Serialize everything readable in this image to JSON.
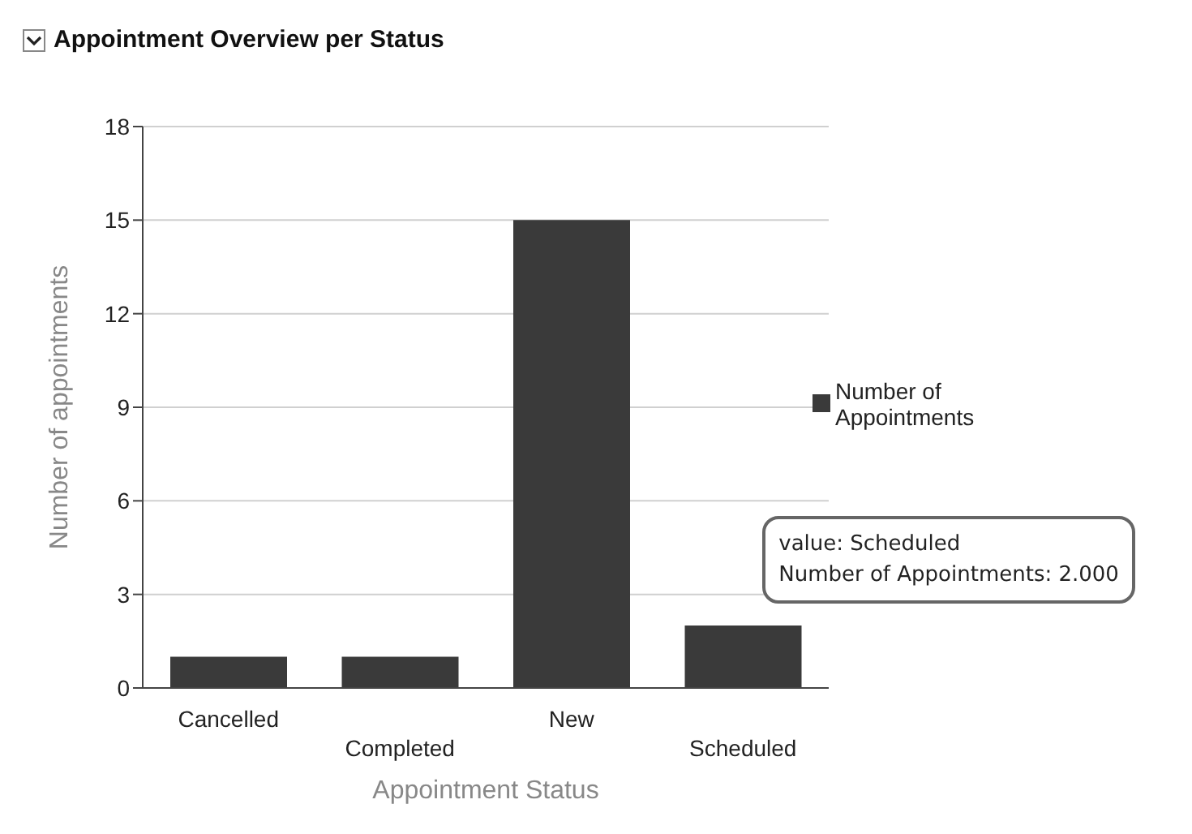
{
  "chart_data": {
    "type": "bar",
    "title": "Appointment Overview per Status",
    "xlabel": "Appointment Status",
    "ylabel": "Number of appointments",
    "categories": [
      "Cancelled",
      "Completed",
      "New",
      "Scheduled"
    ],
    "series": [
      {
        "name": "Number of Appointments",
        "color": "#3a3a3a",
        "values": [
          1,
          1,
          15,
          2
        ]
      }
    ],
    "ylim": [
      0,
      18
    ],
    "yticks": [
      0,
      3,
      6,
      9,
      12,
      15,
      18
    ],
    "grid": "y",
    "legend": "right",
    "annotations": [
      {
        "text": "value: Scheduled\nNumber of Appointments: 2.000",
        "x": "Scheduled",
        "y": 2
      }
    ]
  }
}
